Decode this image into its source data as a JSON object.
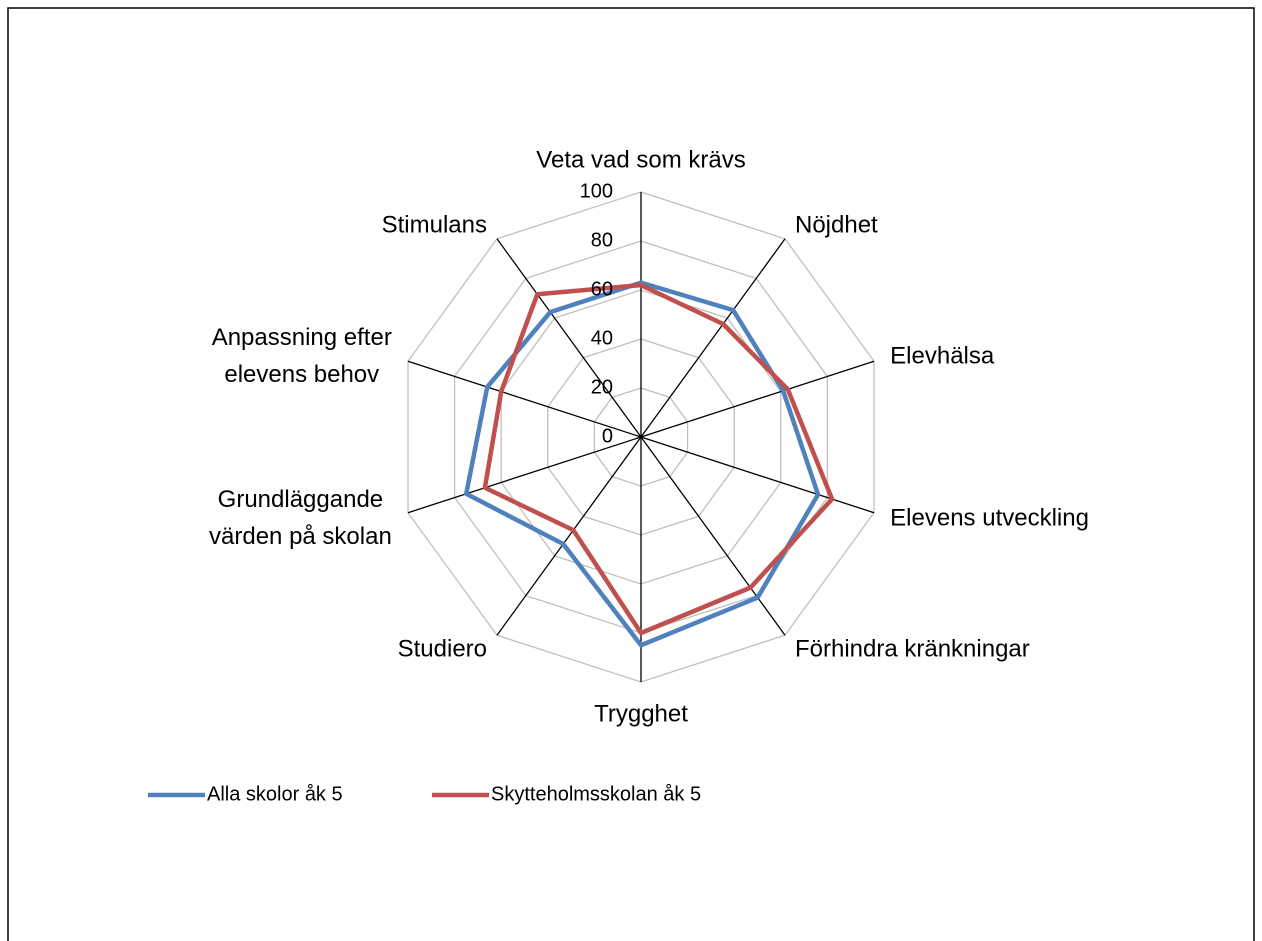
{
  "chart_data": {
    "type": "radar",
    "categories": [
      "Veta vad som krävs",
      "Nöjdhet",
      "Elevhälsa",
      "Elevens utveckling",
      "Förhindra kränkningar",
      "Trygghet",
      "Studiero",
      "Grundläggande\nvärden på skolan",
      "Anpassning efter\nelevens behov",
      "Stimulans"
    ],
    "series": [
      {
        "name": "Alla skolor åk 5",
        "color": "#4f81bd",
        "values": [
          63,
          64,
          61,
          76,
          81,
          85,
          54,
          75,
          66,
          63
        ]
      },
      {
        "name": "Skytteholmsskolan åk 5",
        "color": "#c0504d",
        "values": [
          62,
          57,
          63,
          82,
          76,
          80,
          47,
          67,
          60,
          72
        ]
      }
    ],
    "ylim": [
      0,
      100
    ],
    "yticks": [
      0,
      20,
      40,
      60,
      80,
      100
    ],
    "grid": true,
    "legend": "bottom"
  }
}
